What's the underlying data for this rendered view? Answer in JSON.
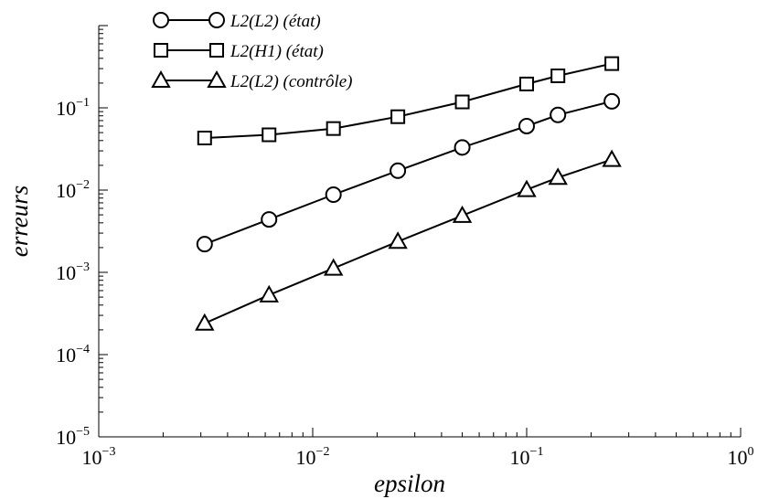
{
  "chart_data": {
    "type": "line",
    "xscale": "log",
    "yscale": "log",
    "xlabel": "epsilon",
    "ylabel": "erreurs",
    "xlim": [
      0.001,
      1
    ],
    "ylim": [
      1e-05,
      1
    ],
    "grid": false,
    "legend_position": "top-left",
    "x_ticks": [
      {
        "base": "10",
        "exp": "−3",
        "value": 0.001
      },
      {
        "base": "10",
        "exp": "−2",
        "value": 0.01
      },
      {
        "base": "10",
        "exp": "−1",
        "value": 0.1
      },
      {
        "base": "10",
        "exp": "0",
        "value": 1
      }
    ],
    "y_ticks": [
      {
        "base": "10",
        "exp": "−5",
        "value": 1e-05
      },
      {
        "base": "10",
        "exp": "−4",
        "value": 0.0001
      },
      {
        "base": "10",
        "exp": "−3",
        "value": 0.001
      },
      {
        "base": "10",
        "exp": "−2",
        "value": 0.01
      },
      {
        "base": "10",
        "exp": "−1",
        "value": 0.1
      }
    ],
    "series": [
      {
        "name": "L2(L2) (état)",
        "marker": "circle",
        "x": [
          0.003125,
          0.00625,
          0.0125,
          0.025,
          0.05,
          0.1,
          0.14,
          0.25
        ],
        "values": [
          0.0022,
          0.0044,
          0.0088,
          0.0172,
          0.033,
          0.06,
          0.082,
          0.12
        ]
      },
      {
        "name": "L2(H1) (état)",
        "marker": "square",
        "x": [
          0.003125,
          0.00625,
          0.0125,
          0.025,
          0.05,
          0.1,
          0.14,
          0.25
        ],
        "values": [
          0.043,
          0.047,
          0.056,
          0.078,
          0.118,
          0.195,
          0.245,
          0.345
        ]
      },
      {
        "name": "L2(L2) (contrôle)",
        "marker": "triangle",
        "x": [
          0.003125,
          0.00625,
          0.0125,
          0.025,
          0.05,
          0.1,
          0.14,
          0.25
        ],
        "values": [
          0.00024,
          0.00053,
          0.00112,
          0.00237,
          0.0049,
          0.0101,
          0.0142,
          0.0235
        ]
      }
    ]
  }
}
